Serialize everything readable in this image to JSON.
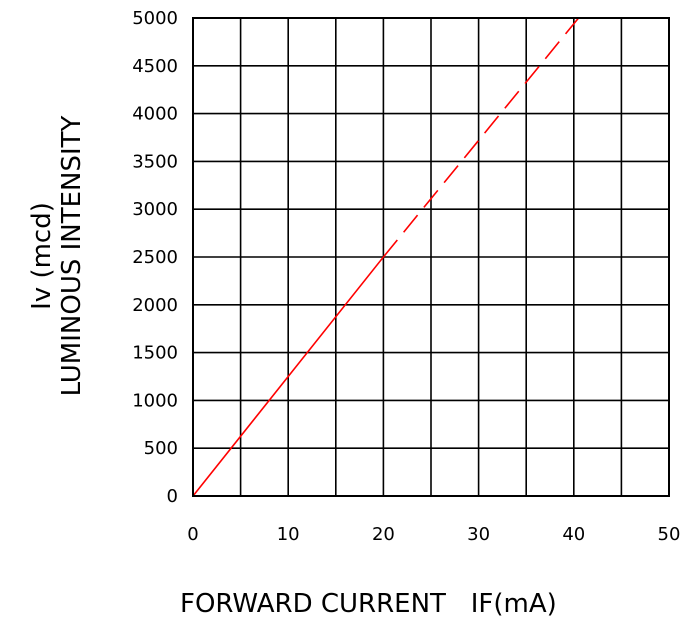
{
  "chart_data": {
    "type": "line",
    "xlabel": "FORWARD CURRENT   IF(mA)",
    "ylabel_line1": "Iv (mcd)",
    "ylabel_line2": "LUMINOUS INTENSITY",
    "xlim": [
      0,
      50
    ],
    "ylim": [
      0,
      5000
    ],
    "x_ticks": [
      0,
      10,
      20,
      30,
      40,
      50
    ],
    "y_ticks": [
      0,
      500,
      1000,
      1500,
      2000,
      2500,
      3000,
      3500,
      4000,
      4500,
      5000
    ],
    "x_grid_step": 5,
    "y_grid_step": 500,
    "grid": true,
    "series": [
      {
        "segment": "measured",
        "style": "solid",
        "color": "#ff0000",
        "x": [
          0,
          20
        ],
        "y": [
          0,
          2500
        ]
      },
      {
        "segment": "extrapolated",
        "style": "dashed",
        "color": "#ff0000",
        "x": [
          20,
          40.5
        ],
        "y": [
          2500,
          5000
        ]
      }
    ]
  }
}
